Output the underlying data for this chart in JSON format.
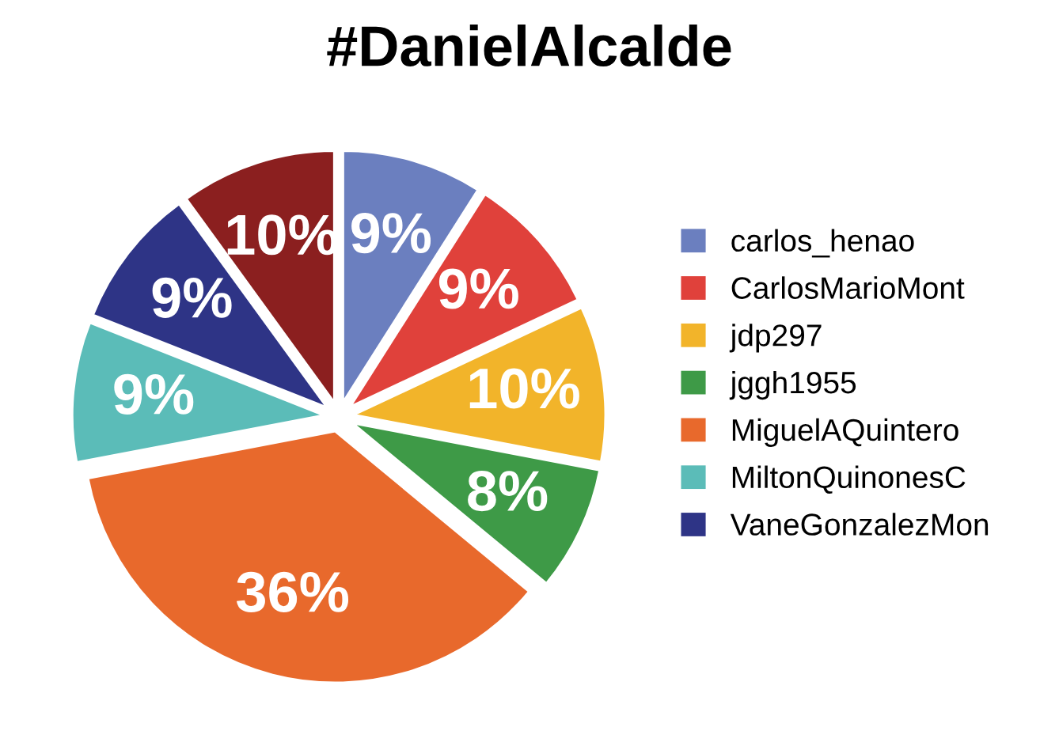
{
  "chart_data": {
    "type": "pie",
    "title": "#DanielAlcalde",
    "categories": [
      "carlos_henao",
      "CarlosMarioMont",
      "jdp297",
      "jggh1955",
      "MiguelAQuintero",
      "MiltonQuinonesC",
      "VaneGonzalezMon",
      null
    ],
    "values": [
      9,
      9,
      10,
      8,
      36,
      9,
      9,
      10
    ],
    "value_labels": [
      "9%",
      "9%",
      "10%",
      "8%",
      "36%",
      "9%",
      "9%",
      "10%"
    ],
    "colors": [
      "#6b7fbf",
      "#e0413b",
      "#f2b42a",
      "#3e9a47",
      "#e8692c",
      "#5bbcb8",
      "#2e3486",
      "#8b1f1f"
    ],
    "legend": "right"
  }
}
